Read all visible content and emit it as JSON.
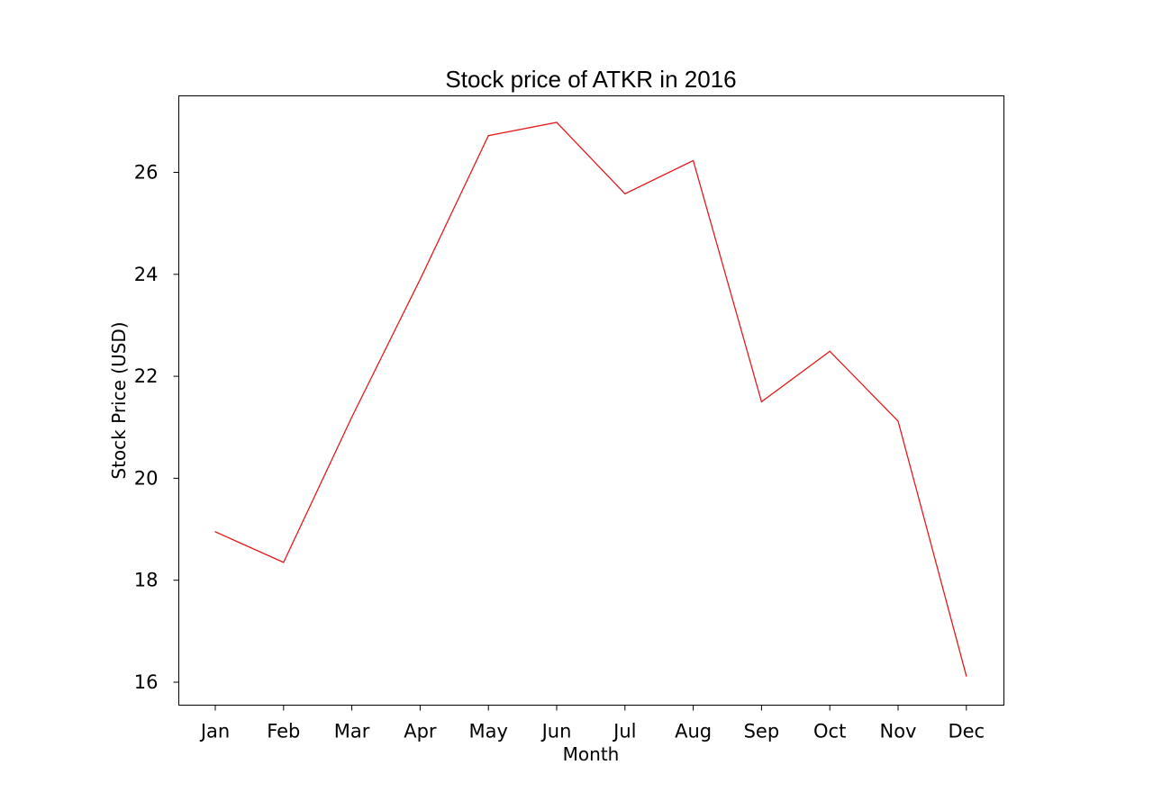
{
  "chart_data": {
    "type": "line",
    "title": "Stock price of ATKR in 2016",
    "xlabel": "Month",
    "ylabel": "Stock Price (USD)",
    "categories": [
      "Jan",
      "Feb",
      "Mar",
      "Apr",
      "May",
      "Jun",
      "Jul",
      "Aug",
      "Sep",
      "Oct",
      "Nov",
      "Dec"
    ],
    "series": [
      {
        "color": "#e41a1c",
        "values": [
          18.95,
          18.35,
          21.2,
          23.9,
          26.72,
          26.98,
          25.58,
          26.23,
          21.5,
          22.49,
          21.12,
          16.12
        ]
      }
    ],
    "ylim": [
      15.55,
      27.5
    ],
    "yticks": [
      16,
      18,
      20,
      22,
      24,
      26
    ],
    "grid": false,
    "legend": "none"
  }
}
